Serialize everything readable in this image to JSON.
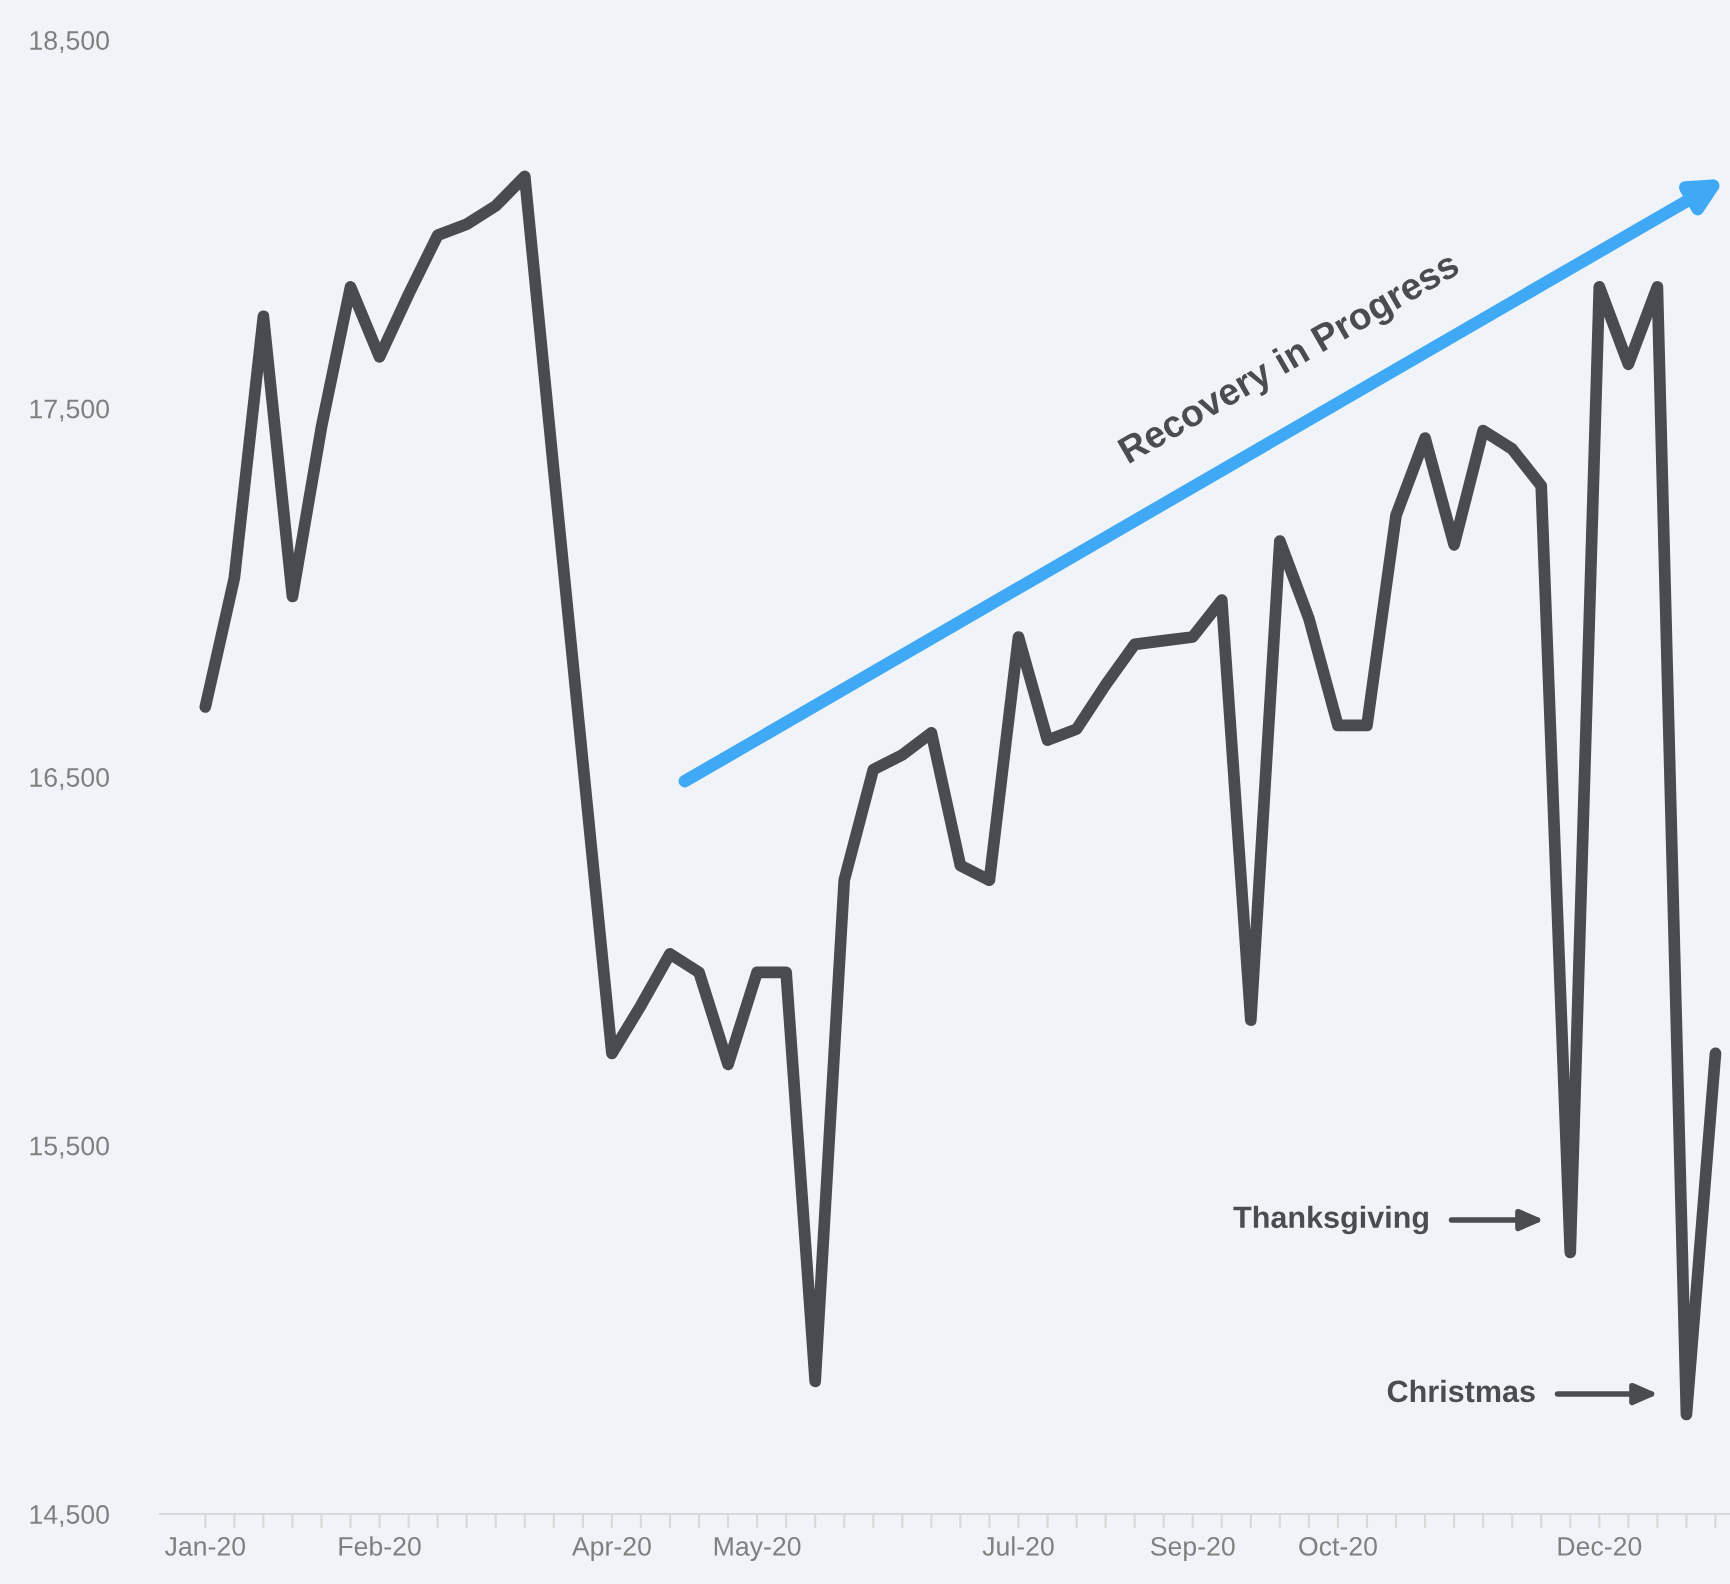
{
  "chart_data": {
    "type": "line",
    "categories": [
      "Jan-20",
      null,
      null,
      null,
      null,
      null,
      "Feb-20",
      null,
      null,
      null,
      null,
      null,
      null,
      null,
      "Apr-20",
      null,
      null,
      null,
      null,
      "May-20",
      null,
      null,
      null,
      null,
      null,
      null,
      null,
      null,
      "Jul-20",
      null,
      null,
      null,
      null,
      null,
      "Sep-20",
      null,
      null,
      null,
      null,
      "Oct-20",
      null,
      null,
      null,
      null,
      null,
      null,
      null,
      null,
      "Dec-20",
      null,
      null,
      null,
      null
    ],
    "series": [
      {
        "color": "#484b4f",
        "values": [
          16690,
          17040,
          17750,
          16990,
          17450,
          17830,
          17640,
          17810,
          17970,
          18000,
          18050,
          18130,
          17330,
          16540,
          15750,
          15880,
          16020,
          15970,
          15720,
          15970,
          15970,
          14860,
          16220,
          16520,
          16560,
          16620,
          16260,
          16220,
          16880,
          16600,
          16630,
          16750,
          16860,
          16870,
          16880,
          16980,
          15840,
          17140,
          16930,
          16640,
          16640,
          17210,
          17420,
          17130,
          17440,
          17390,
          17290,
          15210,
          17830,
          17620,
          17830,
          14770,
          15750
        ]
      }
    ],
    "ylim": [
      14500,
      18500
    ],
    "yticks": [
      {
        "value": 14500,
        "label": "14,500"
      },
      {
        "value": 15500,
        "label": "15,500"
      },
      {
        "value": 16500,
        "label": "16,500"
      },
      {
        "value": 17500,
        "label": "17,500"
      },
      {
        "value": 18500,
        "label": "18,500"
      }
    ],
    "grid": false,
    "legend": false,
    "marker": "none",
    "line_style": "solid",
    "annotations": [
      "Recovery in Progress",
      "Thanksgiving",
      "Christmas"
    ]
  }
}
